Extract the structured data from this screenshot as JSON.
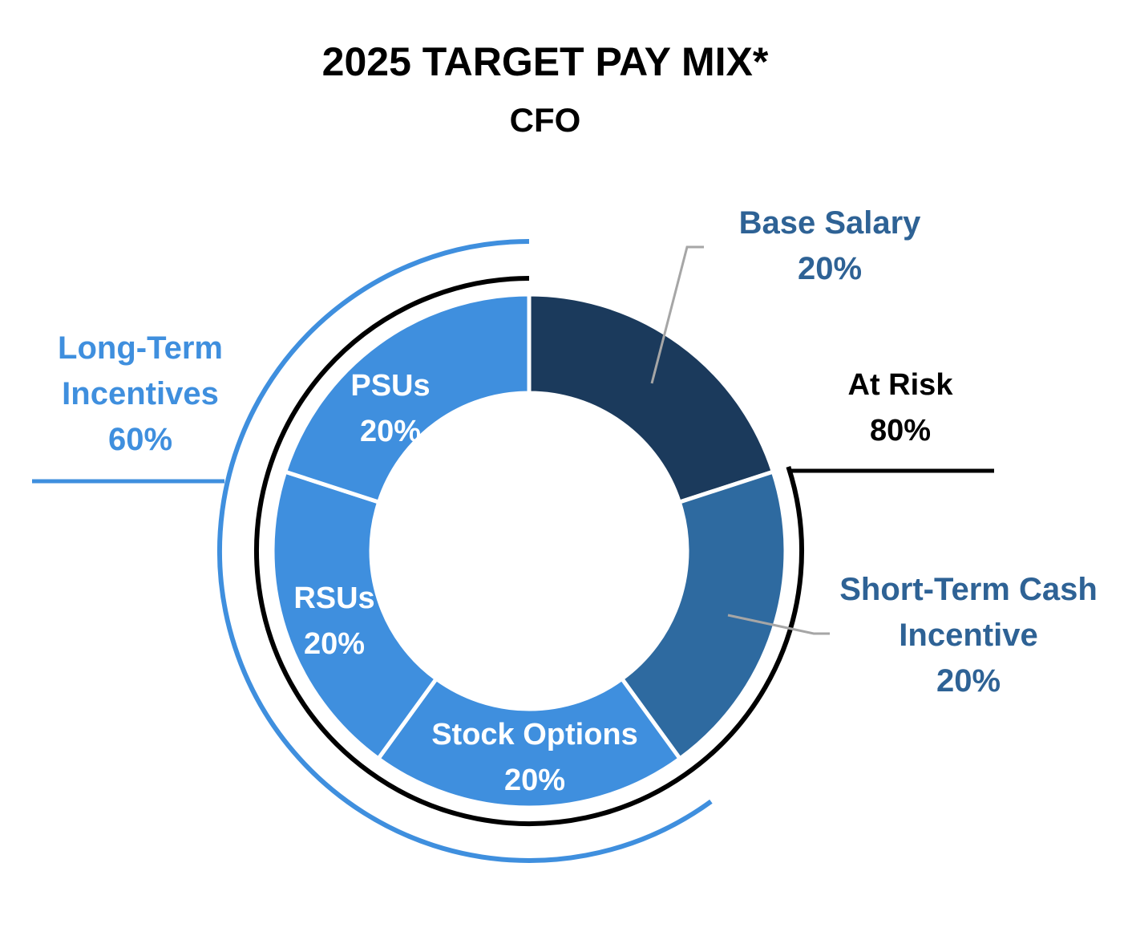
{
  "chart_data": {
    "type": "donut",
    "title": "2025 TARGET PAY MIX*",
    "subtitle": "CFO",
    "categories": [
      "Base Salary",
      "Short-Term Cash Incentive",
      "Stock Options",
      "RSUs",
      "PSUs"
    ],
    "values": [
      20,
      20,
      20,
      20,
      20
    ],
    "value_labels": [
      "20%",
      "20%",
      "20%",
      "20%",
      "20%"
    ],
    "colors": [
      "#1b3a5c",
      "#2e6aa0",
      "#3f8fde",
      "#3f8fde",
      "#3f8fde"
    ],
    "groups": [
      {
        "name": "At Risk",
        "value": 80,
        "value_label": "80%",
        "color": "#000000"
      },
      {
        "name": "Long-Term Incentives",
        "value": 60,
        "value_label": "60%",
        "color": "#3f8fde"
      }
    ]
  }
}
